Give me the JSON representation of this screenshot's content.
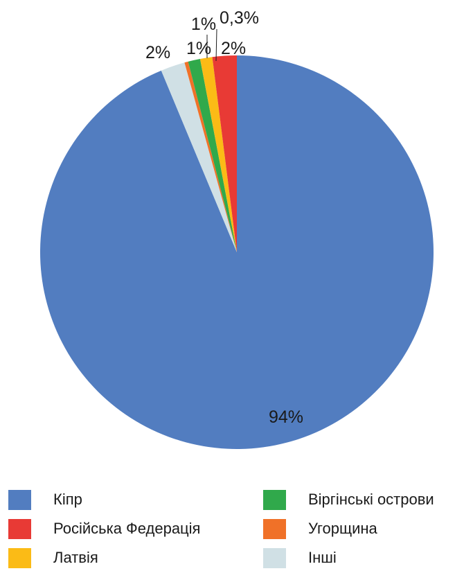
{
  "chart_data": {
    "type": "pie",
    "title": "",
    "slices": [
      {
        "label": "Кіпр",
        "value": 94,
        "display": "94%",
        "color": "#527dc0"
      },
      {
        "label": "Інші",
        "value": 2,
        "display": "2%",
        "color": "#d0e0e5"
      },
      {
        "label": "Угорщина",
        "value": 0.3,
        "display": "0,3%",
        "color": "#f07128"
      },
      {
        "label": "Віргінські острови",
        "value": 1,
        "display": "1%",
        "color": "#30a94b"
      },
      {
        "label": "Латвія",
        "value": 1,
        "display": "1%",
        "color": "#fbbb16"
      },
      {
        "label": "Російська Федерація",
        "value": 2,
        "display": "2%",
        "color": "#e83a35"
      }
    ],
    "legend": {
      "placement": "bottom",
      "columns": 2,
      "items": [
        {
          "label": "Кіпр",
          "color": "#527dc0"
        },
        {
          "label": "Віргінські острови",
          "color": "#30a94b"
        },
        {
          "label": "Російська Федерація",
          "color": "#e83a35"
        },
        {
          "label": "Угорщина",
          "color": "#f07128"
        },
        {
          "label": "Латвія",
          "color": "#fbbb16"
        },
        {
          "label": "Інші",
          "color": "#d0e0e5"
        }
      ]
    }
  }
}
